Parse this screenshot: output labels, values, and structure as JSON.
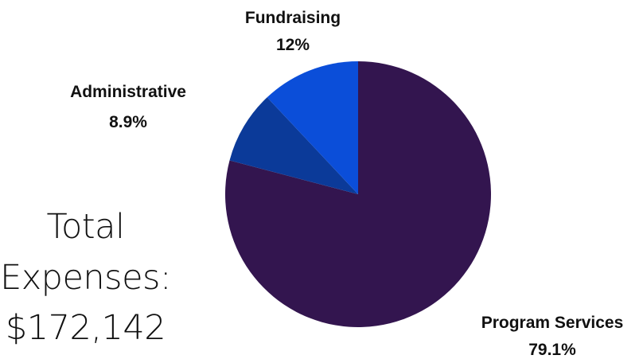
{
  "chart_data": {
    "type": "pie",
    "title": "",
    "slices": [
      {
        "label": "Program Services",
        "value": 79.1,
        "display": "79.1%",
        "color": "#33154f"
      },
      {
        "label": "Administrative",
        "value": 8.9,
        "display": "8.9%",
        "color": "#0b3a99"
      },
      {
        "label": "Fundraising",
        "value": 12,
        "display": "12%",
        "color": "#0b4ed9"
      }
    ],
    "start": "12 o'clock",
    "direction": "clockwise",
    "legend": "none"
  },
  "summary": {
    "line1": "Total",
    "line2": "Expenses:",
    "line3": "$172,142"
  }
}
